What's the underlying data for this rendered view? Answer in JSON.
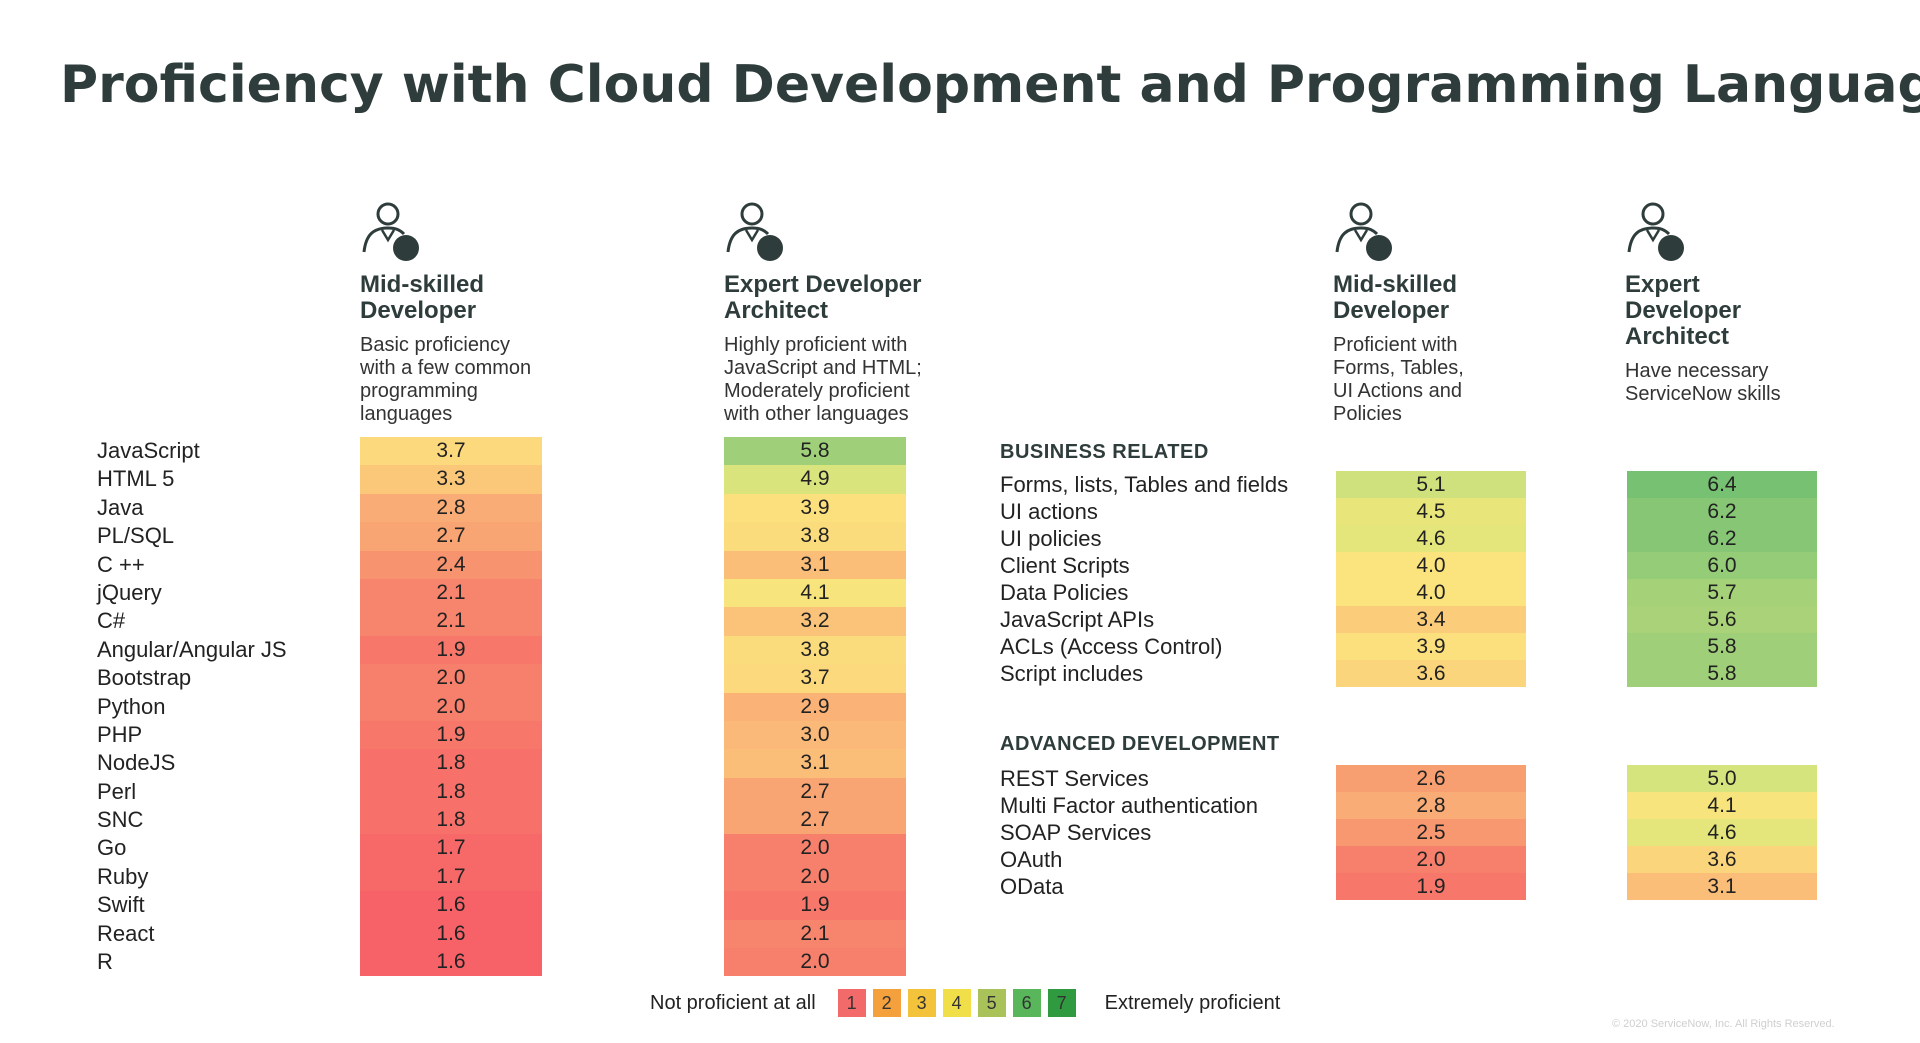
{
  "title": "Proficiency with Cloud Development and Programming Languages",
  "icons": [
    "developer-icon"
  ],
  "personas": {
    "left_mid": {
      "title_line1": "Mid-skilled",
      "title_line2": "Developer",
      "title_line3": "",
      "desc": [
        "Basic proficiency",
        "with a few common",
        "programming",
        "languages"
      ]
    },
    "left_expert": {
      "title_line1": "Expert Developer",
      "title_line2": "Architect",
      "title_line3": "",
      "desc": [
        "Highly proficient with",
        "JavaScript and HTML;",
        "Moderately proficient",
        "with other languages"
      ]
    },
    "right_mid": {
      "title_line1": "Mid-skilled",
      "title_line2": "Developer",
      "title_line3": "",
      "desc": [
        "Proficient with",
        "Forms, Tables,",
        "UI Actions and",
        "Policies"
      ]
    },
    "right_expert": {
      "title_line1": "Expert",
      "title_line2": "Developer",
      "title_line3": "Architect",
      "desc": [
        "Have necessary",
        "ServiceNow skills"
      ]
    }
  },
  "sections": {
    "business": "BUSINESS RELATED",
    "advanced": "ADVANCED DEVELOPMENT"
  },
  "legend": {
    "low": "Not proficient at all",
    "high": "Extremely proficient",
    "levels": [
      "1",
      "2",
      "3",
      "4",
      "5",
      "6",
      "7"
    ],
    "colors": [
      "#f26a6a",
      "#f4a03c",
      "#f3c33b",
      "#f1df4a",
      "#a9c25a",
      "#59b65a",
      "#2f9a3f"
    ]
  },
  "copyright": "© 2020 ServiceNow, Inc. All Rights Reserved.",
  "chart_data": [
    {
      "type": "heatmap",
      "scale": [
        1,
        7
      ],
      "categories": [
        "JavaScript",
        "HTML 5",
        "Java",
        "PL/SQL",
        "C ++",
        "jQuery",
        "C#",
        "Angular/Angular JS",
        "Bootstrap",
        "Python",
        "PHP",
        "NodeJS",
        "Perl",
        "SNC",
        "Go",
        "Ruby",
        "Swift",
        "React",
        "R"
      ],
      "series": [
        {
          "name": "Mid-skilled Developer",
          "values": [
            "3.7",
            "3.3",
            "2.8",
            "2.7",
            "2.4",
            "2.1",
            "2.1",
            "1.9",
            "2.0",
            "2.0",
            "1.9",
            "1.8",
            "1.8",
            "1.8",
            "1.7",
            "1.7",
            "1.6",
            "1.6",
            "1.6"
          ]
        },
        {
          "name": "Expert Developer Architect",
          "values": [
            "5.8",
            "4.9",
            "3.9",
            "3.8",
            "3.1",
            "4.1",
            "3.2",
            "3.8",
            "3.7",
            "2.9",
            "3.0",
            "3.1",
            "2.7",
            "2.7",
            "2.0",
            "2.0",
            "1.9",
            "2.1",
            "2.0"
          ]
        }
      ]
    },
    {
      "type": "heatmap",
      "scale": [
        1,
        7
      ],
      "section": "BUSINESS RELATED",
      "categories": [
        "Forms, lists, Tables and fields",
        "UI actions",
        "UI policies",
        "Client Scripts",
        "Data Policies",
        "JavaScript APIs",
        "ACLs (Access Control)",
        "Script includes"
      ],
      "series": [
        {
          "name": "Mid-skilled Developer",
          "values": [
            "5.1",
            "4.5",
            "4.6",
            "4.0",
            "4.0",
            "3.4",
            "3.9",
            "3.6"
          ]
        },
        {
          "name": "Expert Developer Architect",
          "values": [
            "6.4",
            "6.2",
            "6.2",
            "6.0",
            "5.7",
            "5.6",
            "5.8",
            "5.8"
          ]
        }
      ]
    },
    {
      "type": "heatmap",
      "scale": [
        1,
        7
      ],
      "section": "ADVANCED DEVELOPMENT",
      "categories": [
        "REST Services",
        "Multi Factor authentication",
        "SOAP Services",
        "OAuth",
        "OData"
      ],
      "series": [
        {
          "name": "Mid-skilled Developer",
          "values": [
            "2.6",
            "2.8",
            "2.5",
            "2.0",
            "1.9"
          ]
        },
        {
          "name": "Expert Developer Architect",
          "values": [
            "5.0",
            "4.1",
            "4.6",
            "3.6",
            "3.1"
          ]
        }
      ]
    }
  ]
}
